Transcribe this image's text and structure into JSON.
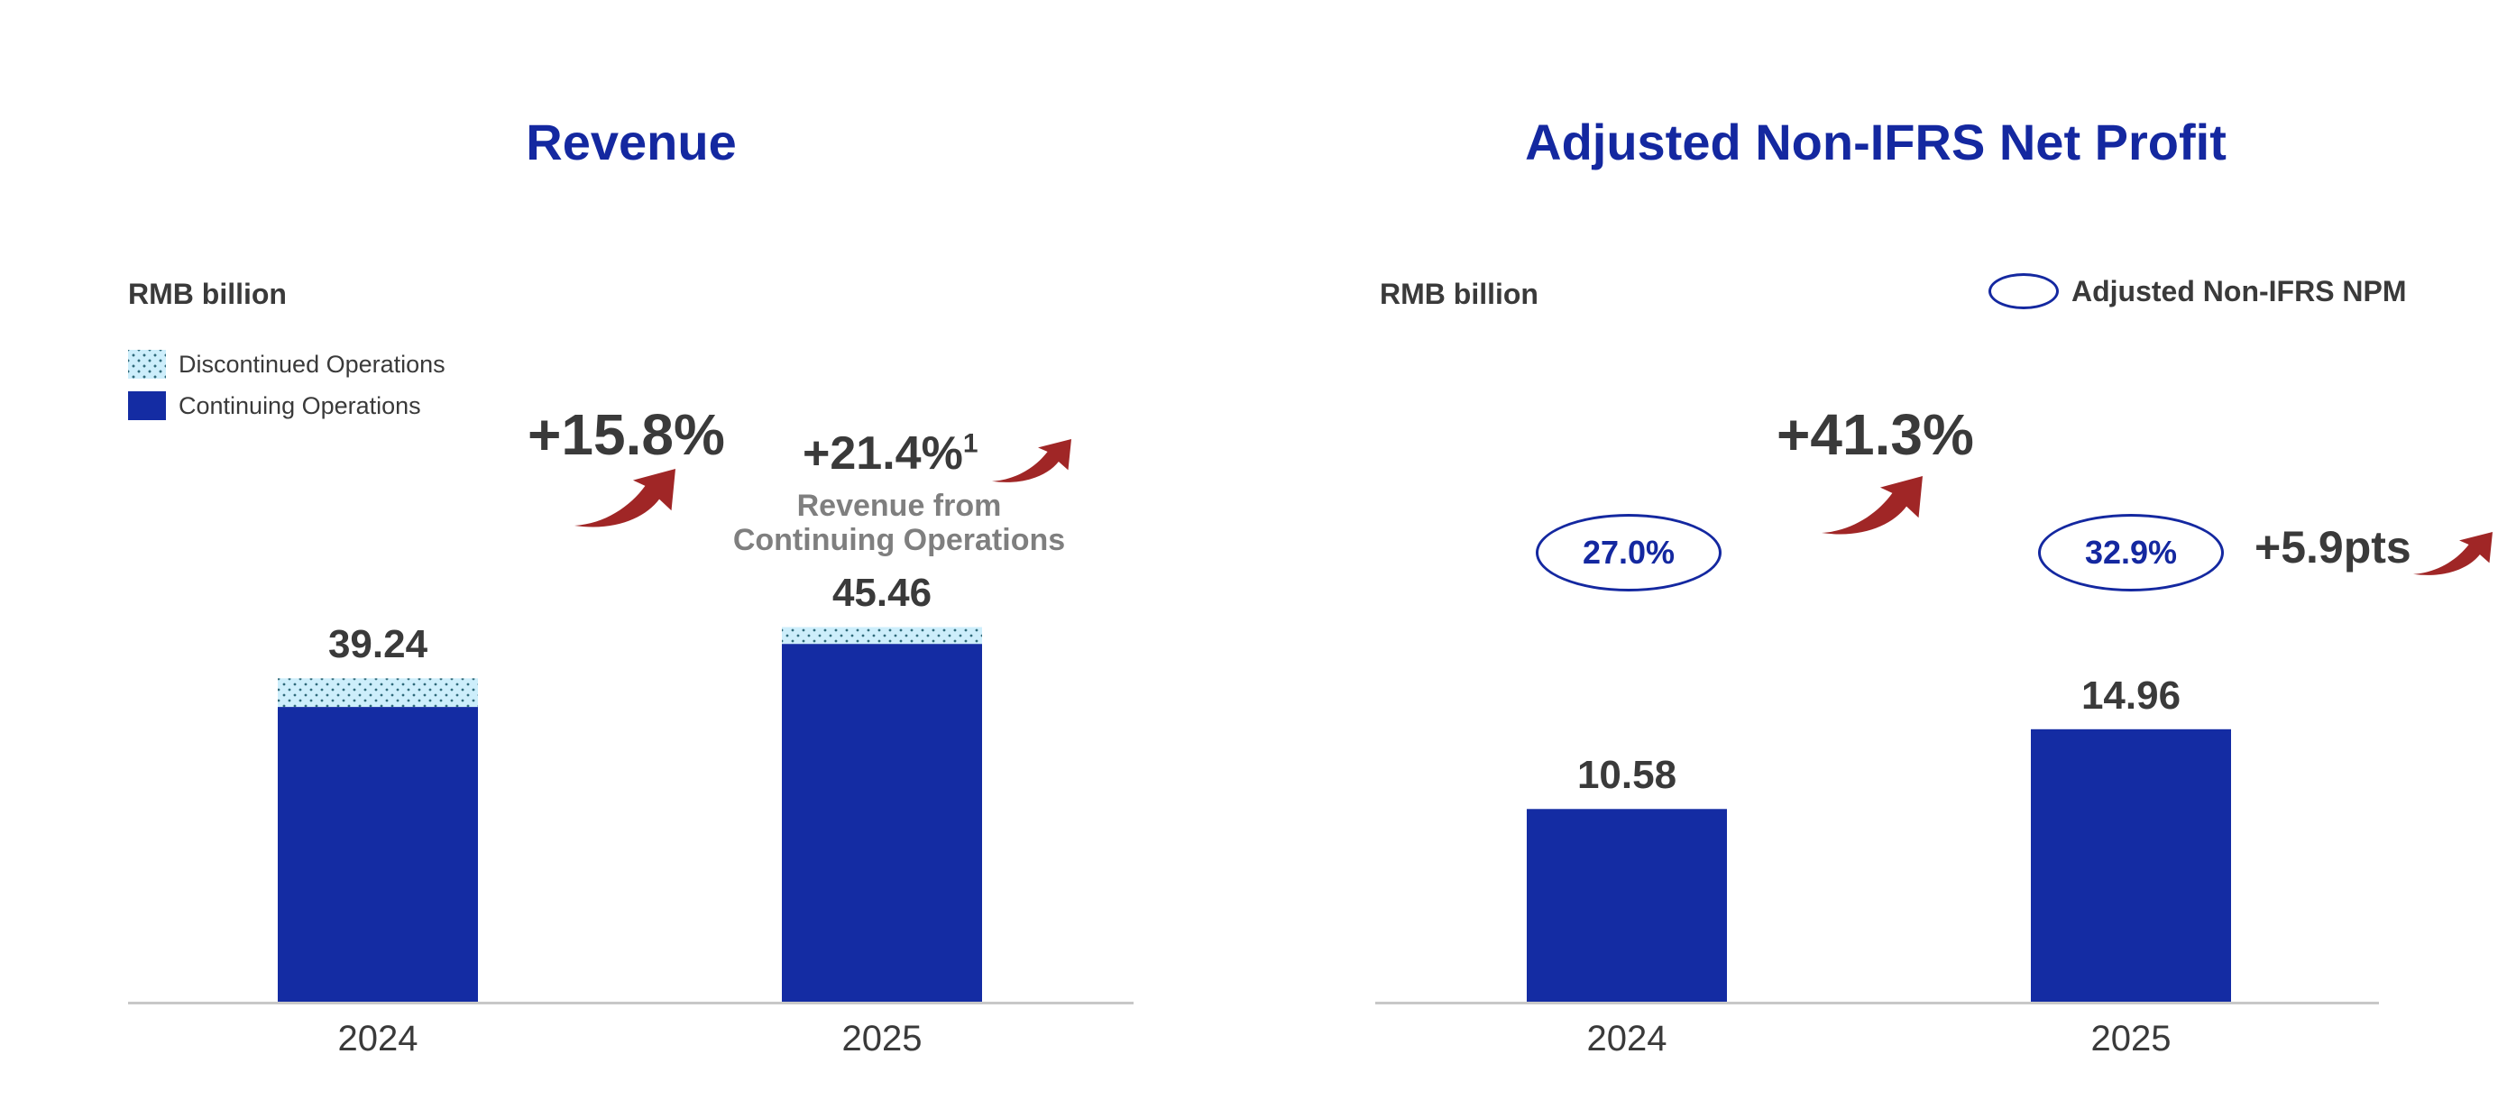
{
  "colors": {
    "title": "#1428a0",
    "continuing": "#142ca3",
    "discontinued": "#cdeefb",
    "arrow": "#a02626",
    "axis": "#c8c8c8",
    "text": "#3a3a3a",
    "note": "#7f7f7f"
  },
  "chart_data": [
    {
      "type": "bar",
      "stacked": true,
      "title": "Revenue",
      "ylabel": "RMB billion",
      "categories": [
        "2024",
        "2025"
      ],
      "series": [
        {
          "name": "Continuing Operations",
          "values": [
            35.77,
            43.42
          ]
        },
        {
          "name": "Discontinued Operations",
          "values": [
            3.47,
            2.04
          ]
        }
      ],
      "totals": [
        39.24,
        45.46
      ],
      "data_labels": {
        "totals": [
          "39.24",
          "45.46"
        ],
        "continuing": [
          "35.77",
          "43.42"
        ]
      },
      "legend": [
        "Discontinued Operations",
        "Continuing Operations"
      ],
      "legend_position": "top-left",
      "annotations": {
        "total_growth": "+15.8%",
        "continuing_growth": "+21.4%",
        "continuing_growth_footnote": "1",
        "continuing_growth_note_line1": "Revenue from",
        "continuing_growth_note_line2": "Continuing Operations"
      },
      "ylim": [
        0,
        50
      ],
      "grid": false
    },
    {
      "type": "bar",
      "title": "Adjusted Non-IFRS Net Profit",
      "ylabel": "RMB billion",
      "categories": [
        "2024",
        "2025"
      ],
      "series": [
        {
          "name": "Adjusted Non-IFRS Net Profit",
          "values": [
            10.58,
            14.96
          ]
        }
      ],
      "data_labels": [
        "10.58",
        "14.96"
      ],
      "secondary": {
        "name": "Adjusted Non-IFRS NPM",
        "values": [
          27.0,
          32.9
        ],
        "labels": [
          "27.0%",
          "32.9%"
        ],
        "change": "+5.9pts"
      },
      "legend": [
        "Adjusted Non-IFRS NPM"
      ],
      "legend_position": "top-right",
      "annotations": {
        "growth": "+41.3%"
      },
      "ylim": [
        0,
        20
      ],
      "grid": false
    }
  ]
}
